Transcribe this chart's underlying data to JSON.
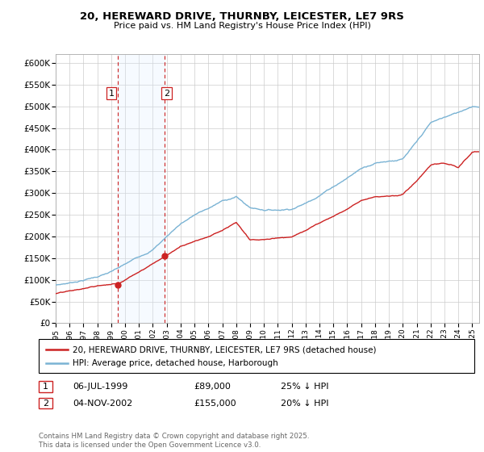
{
  "title": "20, HEREWARD DRIVE, THURNBY, LEICESTER, LE7 9RS",
  "subtitle": "Price paid vs. HM Land Registry's House Price Index (HPI)",
  "ylim": [
    0,
    620000
  ],
  "yticks": [
    0,
    50000,
    100000,
    150000,
    200000,
    250000,
    300000,
    350000,
    400000,
    450000,
    500000,
    550000,
    600000
  ],
  "ytick_labels": [
    "£0",
    "£50K",
    "£100K",
    "£150K",
    "£200K",
    "£250K",
    "£300K",
    "£350K",
    "£400K",
    "£450K",
    "£500K",
    "£550K",
    "£600K"
  ],
  "hpi_color": "#7ab3d4",
  "price_color": "#cc2222",
  "sale1_year": 1999.5,
  "sale1_price": 89000,
  "sale2_year": 2002.84,
  "sale2_price": 155000,
  "shade_color": "#ddeeff",
  "vline_color": "#cc2222",
  "legend_label_price": "20, HEREWARD DRIVE, THURNBY, LEICESTER, LE7 9RS (detached house)",
  "legend_label_hpi": "HPI: Average price, detached house, Harborough",
  "footer": "Contains HM Land Registry data © Crown copyright and database right 2025.\nThis data is licensed under the Open Government Licence v3.0.",
  "table_rows": [
    {
      "num": "1",
      "date": "06-JUL-1999",
      "price": "£89,000",
      "note": "25% ↓ HPI"
    },
    {
      "num": "2",
      "date": "04-NOV-2002",
      "price": "£155,000",
      "note": "20% ↓ HPI"
    }
  ],
  "background_color": "#ffffff",
  "grid_color": "#cccccc",
  "hpi_knots_x": [
    1995,
    1996,
    1997,
    1998,
    1999,
    2000,
    2001,
    2002,
    2003,
    2004,
    2005,
    2006,
    2007,
    2008,
    2009,
    2010,
    2011,
    2012,
    2013,
    2014,
    2015,
    2016,
    2017,
    2018,
    2019,
    2020,
    2021,
    2022,
    2023,
    2024,
    2025
  ],
  "hpi_knots_y": [
    88000,
    93000,
    100000,
    108000,
    118000,
    133000,
    150000,
    168000,
    198000,
    228000,
    248000,
    262000,
    278000,
    288000,
    262000,
    258000,
    258000,
    262000,
    275000,
    295000,
    316000,
    336000,
    358000,
    372000,
    378000,
    382000,
    418000,
    460000,
    472000,
    482000,
    498000
  ],
  "price_knots_x": [
    1995,
    1996,
    1997,
    1998,
    1999.5,
    2002.84,
    2004,
    2005,
    2006,
    2007,
    2008,
    2009,
    2010,
    2011,
    2012,
    2013,
    2014,
    2015,
    2016,
    2017,
    2018,
    2019,
    2020,
    2021,
    2022,
    2023,
    2024,
    2025
  ],
  "price_knots_y": [
    68000,
    72000,
    77000,
    83000,
    89000,
    155000,
    178000,
    192000,
    204000,
    218000,
    235000,
    192000,
    192000,
    196000,
    200000,
    213000,
    230000,
    248000,
    263000,
    285000,
    296000,
    298000,
    302000,
    332000,
    368000,
    372000,
    360000,
    395000
  ]
}
